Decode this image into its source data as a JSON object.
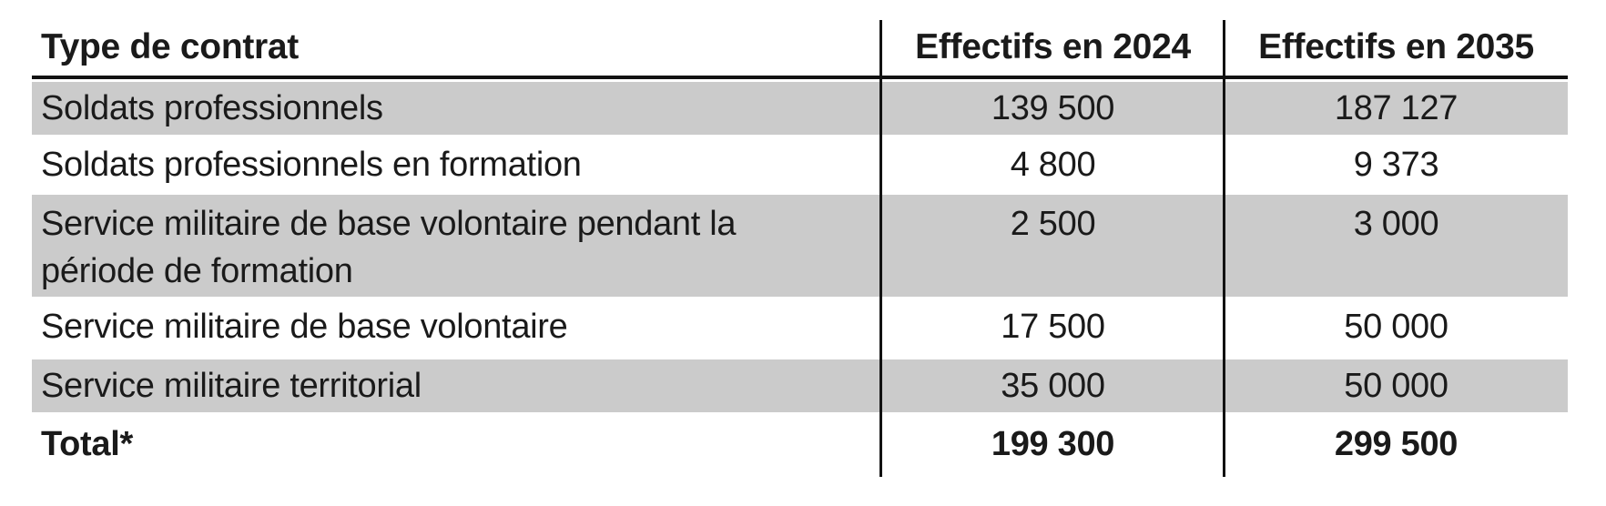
{
  "table": {
    "columns": [
      {
        "label": "Type de contrat"
      },
      {
        "label": "Effectifs en 2024"
      },
      {
        "label": "Effectifs en 2035"
      }
    ],
    "rows": [
      {
        "label": "Soldats professionnels",
        "v2024": "139 500",
        "v2035": "187 127",
        "shaded": true
      },
      {
        "label": "Soldats professionnels en formation",
        "v2024": "4 800",
        "v2035": "9 373",
        "shaded": false
      },
      {
        "label": "Service militaire de base volontaire pendant la\npériode de formation",
        "v2024": "2 500",
        "v2035": "3 000",
        "shaded": true
      },
      {
        "label": "Service militaire de base volontaire",
        "v2024": "17 500",
        "v2035": "50 000",
        "shaded": false
      },
      {
        "label": "Service militaire territorial",
        "v2024": "35 000",
        "v2035": "50 000",
        "shaded": true
      },
      {
        "label": "Total*",
        "v2024": "199 300",
        "v2035": "299 500",
        "shaded": false,
        "bold": true
      }
    ],
    "colors": {
      "row_shade": "#cbcbcb",
      "text": "#1a1a1a",
      "rule": "#121212"
    }
  }
}
